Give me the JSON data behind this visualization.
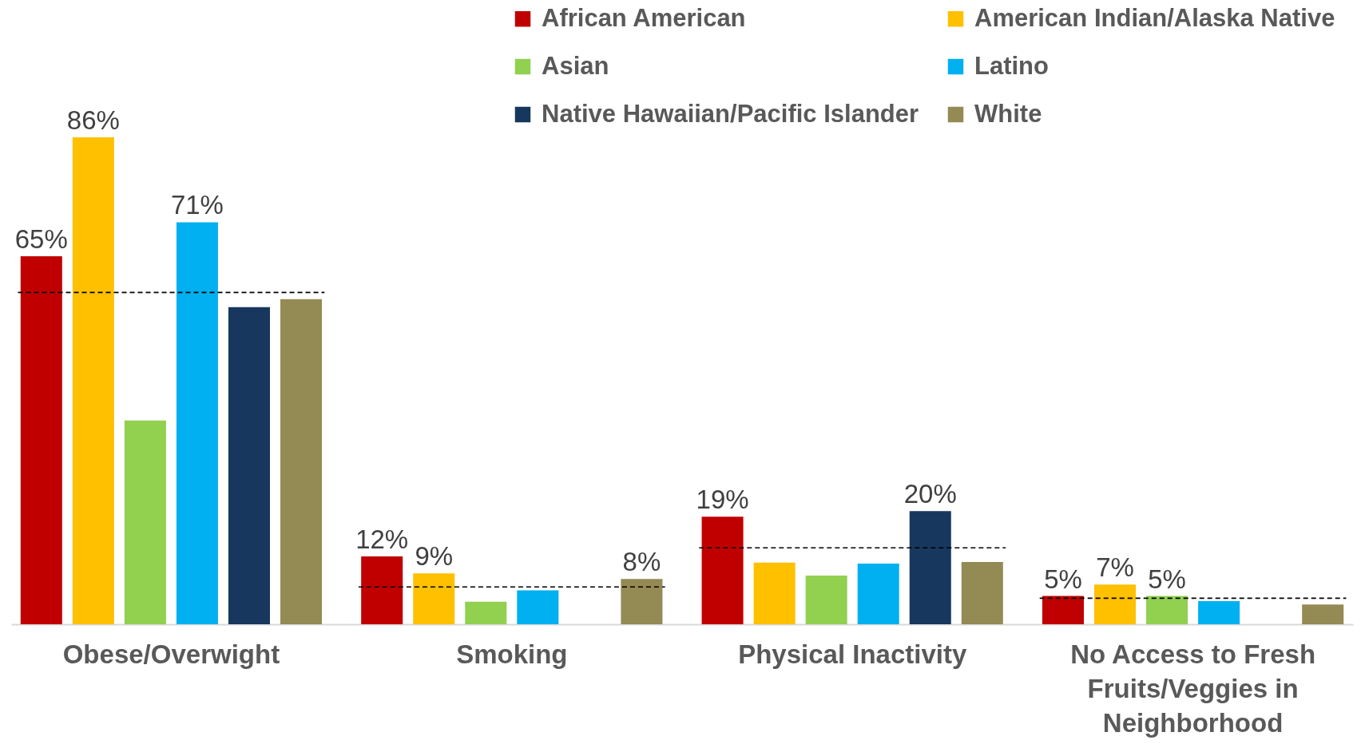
{
  "chart_data": {
    "type": "bar",
    "categories": [
      "Obese/Overwight",
      "Smoking",
      "Physical Inactivity",
      "No Access to Fresh Fruits/Veggies in Neighborhood"
    ],
    "series": [
      {
        "name": "African American",
        "color": "#c00000",
        "values": [
          65,
          12,
          19,
          5
        ],
        "value_labels": [
          "65%",
          "12%",
          "19%",
          "5%"
        ]
      },
      {
        "name": "American Indian/Alaska Native",
        "color": "#ffc000",
        "values": [
          86,
          9,
          10.9,
          7
        ],
        "value_labels": [
          "86%",
          "9%",
          null,
          "7%"
        ]
      },
      {
        "name": "Asian",
        "color": "#92d050",
        "values": [
          36,
          4,
          8.6,
          5
        ],
        "value_labels": [
          null,
          null,
          null,
          "5%"
        ]
      },
      {
        "name": "Latino",
        "color": "#00b0f0",
        "values": [
          71,
          6,
          10.7,
          4.1
        ],
        "value_labels": [
          "71%",
          null,
          null,
          null
        ]
      },
      {
        "name": "Native Hawaiian/Pacific Islander",
        "color": "#17375e",
        "values": [
          56,
          null,
          20,
          null
        ],
        "value_labels": [
          null,
          null,
          "20%",
          null
        ]
      },
      {
        "name": "White",
        "color": "#948a54",
        "values": [
          57.4,
          8,
          11,
          3.5
        ],
        "value_labels": [
          null,
          "8%",
          null,
          null
        ]
      }
    ],
    "ref_lines": [
      {
        "axis": "y",
        "value": 58.6,
        "line_style": "dashed",
        "color": "#000000"
      },
      {
        "axis": "y",
        "value": 6.6,
        "line_style": "dashed",
        "color": "#000000"
      },
      {
        "axis": "y",
        "value": 13.5,
        "line_style": "dashed",
        "color": "#000000"
      },
      {
        "axis": "y",
        "value": 4.6,
        "line_style": "dashed",
        "color": "#000000"
      }
    ],
    "tick_labels": "x",
    "legend": "top right"
  }
}
